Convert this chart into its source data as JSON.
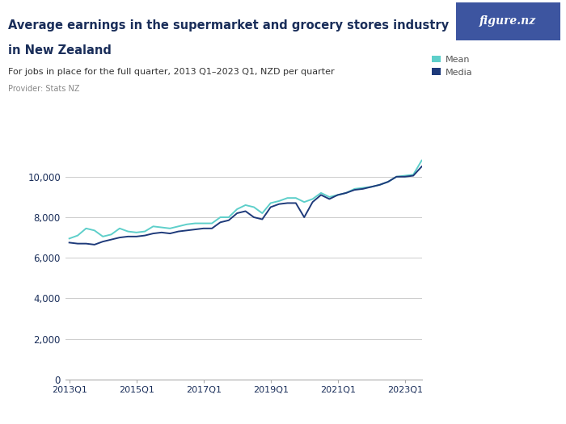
{
  "title_line1": "Average earnings in the supermarket and grocery stores industry",
  "title_line2": "in New Zealand",
  "subtitle": "For jobs in place for the full quarter, 2013 Q1–2023 Q1, NZD per quarter",
  "provider": "Provider: Stats NZ",
  "mean_color": "#5ecfca",
  "median_color": "#1e3a7a",
  "background_color": "#ffffff",
  "figure_nz_bg": "#3d55a0",
  "ylim": [
    0,
    11500
  ],
  "yticks": [
    0,
    2000,
    4000,
    6000,
    8000,
    10000
  ],
  "xtick_labels": [
    "2013Q1",
    "2015Q1",
    "2017Q1",
    "2019Q1",
    "2021Q1",
    "2023Q1"
  ],
  "mean_values": [
    6950,
    7100,
    7450,
    7350,
    7050,
    7150,
    7450,
    7300,
    7250,
    7300,
    7550,
    7500,
    7450,
    7550,
    7650,
    7700,
    7700,
    7700,
    8000,
    8000,
    8400,
    8600,
    8500,
    8200,
    8700,
    8800,
    8950,
    8950,
    8750,
    8900,
    9200,
    9000,
    9100,
    9200,
    9400,
    9450,
    9500,
    9600,
    9750,
    10000,
    10050,
    10100,
    10800
  ],
  "median_values": [
    6750,
    6700,
    6700,
    6650,
    6800,
    6900,
    7000,
    7050,
    7050,
    7100,
    7200,
    7250,
    7200,
    7300,
    7350,
    7400,
    7450,
    7450,
    7750,
    7850,
    8200,
    8300,
    8000,
    7900,
    8500,
    8650,
    8700,
    8700,
    8000,
    8750,
    9100,
    8900,
    9100,
    9200,
    9350,
    9400,
    9500,
    9600,
    9750,
    10000,
    10000,
    10050,
    10500
  ],
  "legend_mean": "Mean",
  "legend_median": "Media",
  "title_color": "#1a2e5a",
  "subtitle_color": "#333333",
  "provider_color": "#888888",
  "tick_color": "#1a2e5a",
  "grid_color": "#cccccc"
}
